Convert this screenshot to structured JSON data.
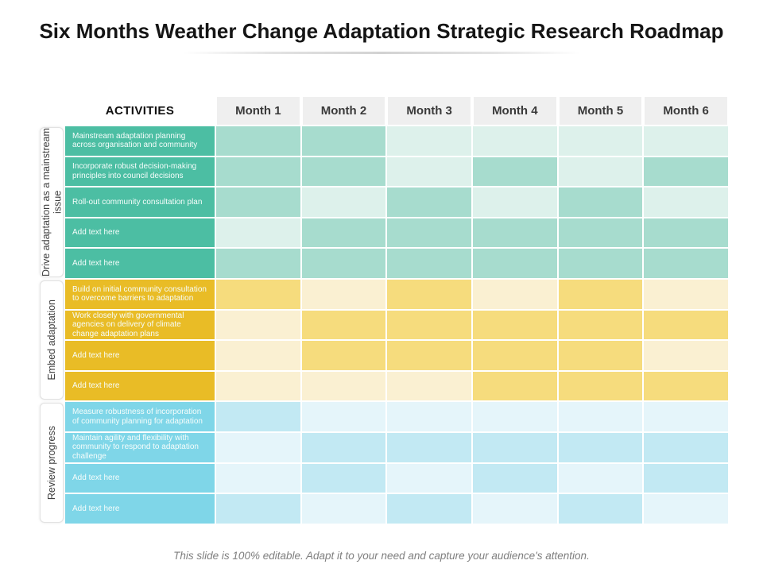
{
  "title": "Six Months Weather Change Adaptation Strategic Research Roadmap",
  "footer": "This slide is 100% editable. Adapt it to your need and capture your audience's attention.",
  "colors": {
    "header_bg": "#efefef",
    "header_text": "#3a3a3a",
    "activity_text": "#ffffff"
  },
  "table": {
    "activities_header": "ACTIVITIES",
    "months": [
      "Month 1",
      "Month 2",
      "Month 3",
      "Month 4",
      "Month 5",
      "Month 6"
    ],
    "sections": [
      {
        "label": "Drive adaptation as a mainstream issue",
        "colors": {
          "label_bg": "#4cbea3",
          "active": "#a7dcce",
          "inactive": "#ddf1eb"
        },
        "rows": [
          {
            "text": "Mainstream adaptation planning across organisation and community",
            "months": [
              1,
              1,
              0,
              0,
              0,
              0
            ]
          },
          {
            "text": "Incorporate robust decision-making principles into council decisions",
            "months": [
              1,
              1,
              0,
              1,
              0,
              1
            ]
          },
          {
            "text": "Roll-out community consultation plan",
            "months": [
              1,
              0,
              1,
              0,
              1,
              0
            ]
          },
          {
            "text": "Add text here",
            "months": [
              0,
              1,
              1,
              1,
              1,
              1
            ]
          },
          {
            "text": "Add text here",
            "months": [
              1,
              1,
              1,
              1,
              1,
              1
            ]
          }
        ]
      },
      {
        "label": "Embed adaptation",
        "colors": {
          "label_bg": "#e9bc26",
          "active": "#f6dc7d",
          "inactive": "#faf0d2"
        },
        "rows": [
          {
            "text": "Build on initial community consultation to overcome barriers to adaptation",
            "months": [
              1,
              0,
              1,
              0,
              1,
              0
            ]
          },
          {
            "text": "Work closely with governmental agencies on delivery of climate change adaptation plans",
            "months": [
              0,
              1,
              1,
              1,
              1,
              1
            ]
          },
          {
            "text": "Add text here",
            "months": [
              0,
              1,
              1,
              1,
              1,
              0
            ]
          },
          {
            "text": "Add text here",
            "months": [
              0,
              0,
              0,
              1,
              1,
              1
            ]
          }
        ]
      },
      {
        "label": "Review progress",
        "colors": {
          "label_bg": "#7fd6e8",
          "active": "#c2e9f3",
          "inactive": "#e5f5fa"
        },
        "rows": [
          {
            "text": "Measure robustness of incorporation of community planning for adaptation",
            "months": [
              1,
              0,
              0,
              0,
              0,
              0
            ]
          },
          {
            "text": "Maintain agility and flexibility with community to respond to adaptation challenge",
            "months": [
              0,
              1,
              1,
              1,
              1,
              1
            ]
          },
          {
            "text": "Add text here",
            "months": [
              0,
              1,
              0,
              1,
              0,
              1
            ]
          },
          {
            "text": "Add text here",
            "months": [
              1,
              0,
              1,
              0,
              1,
              0
            ]
          }
        ]
      }
    ]
  }
}
